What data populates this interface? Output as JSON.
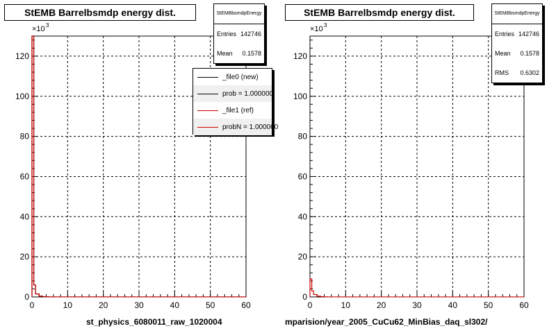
{
  "panels": [
    {
      "title": "StEMB Barrelbsmdp energy dist.",
      "file_label": "st_physics_6080011_raw_1020004",
      "stats": {
        "name": "StEMBbsmdpEnergy",
        "rows": [
          {
            "label": "Entries",
            "value": "142746"
          },
          {
            "label": "Mean",
            "value": "0.1578"
          }
        ]
      },
      "legend": [
        {
          "label": "_file0 (new)",
          "color": "#000000"
        },
        {
          "label": "prob = 1.000000",
          "color": "#000000"
        },
        {
          "label": "_file1 (ref)",
          "color": "#cc0000"
        },
        {
          "label": "probN = 1.000000",
          "color": "#cc0000"
        }
      ]
    },
    {
      "title": "StEMB Barrelbsmdp energy dist.",
      "file_label": "mparision/year_2005_CuCu62_MinBias_daq_sl302/",
      "stats": {
        "name": "StEMBbsmdpEnergy",
        "rows": [
          {
            "label": "Entries",
            "value": "142746"
          },
          {
            "label": "Mean",
            "value": "0.1578"
          },
          {
            "label": "RMS",
            "value": "0.6302"
          }
        ]
      }
    }
  ],
  "chart_data": [
    {
      "type": "line",
      "title": "StEMB Barrelbsmdp energy dist.",
      "xlabel": "",
      "ylabel": "",
      "xlim": [
        0,
        60
      ],
      "ylim": [
        0,
        130000
      ],
      "y_multiplier": "×10",
      "y_multiplier_exp": "3",
      "x_ticks": [
        0,
        10,
        20,
        30,
        40,
        50,
        60
      ],
      "y_ticks": [
        0,
        20,
        40,
        60,
        80,
        100,
        120
      ],
      "grid": true,
      "series": [
        {
          "color": "#000000",
          "x": [
            0,
            0.5,
            1,
            2,
            3,
            4,
            5,
            60
          ],
          "values": [
            130000,
            6000,
            1500,
            400,
            150,
            60,
            20,
            0
          ]
        },
        {
          "color": "#cc0000",
          "x": [
            0,
            0.5,
            1,
            2,
            3,
            4,
            5,
            60
          ],
          "values": [
            130000,
            6000,
            1500,
            400,
            150,
            60,
            20,
            0
          ]
        }
      ]
    },
    {
      "type": "line",
      "title": "StEMB Barrelbsmdp energy dist.",
      "xlabel": "",
      "ylabel": "",
      "xlim": [
        0,
        60
      ],
      "ylim": [
        0,
        130000
      ],
      "y_multiplier": "×10",
      "y_multiplier_exp": "3",
      "x_ticks": [
        0,
        10,
        20,
        30,
        40,
        50,
        60
      ],
      "y_ticks": [
        0,
        20,
        40,
        60,
        80,
        100,
        120
      ],
      "grid": true,
      "series": [
        {
          "color": "#cc0000",
          "x": [
            0,
            0.5,
            1,
            2,
            3,
            4,
            5,
            60
          ],
          "values": [
            9000,
            3000,
            1200,
            400,
            150,
            60,
            20,
            0
          ]
        }
      ]
    }
  ]
}
